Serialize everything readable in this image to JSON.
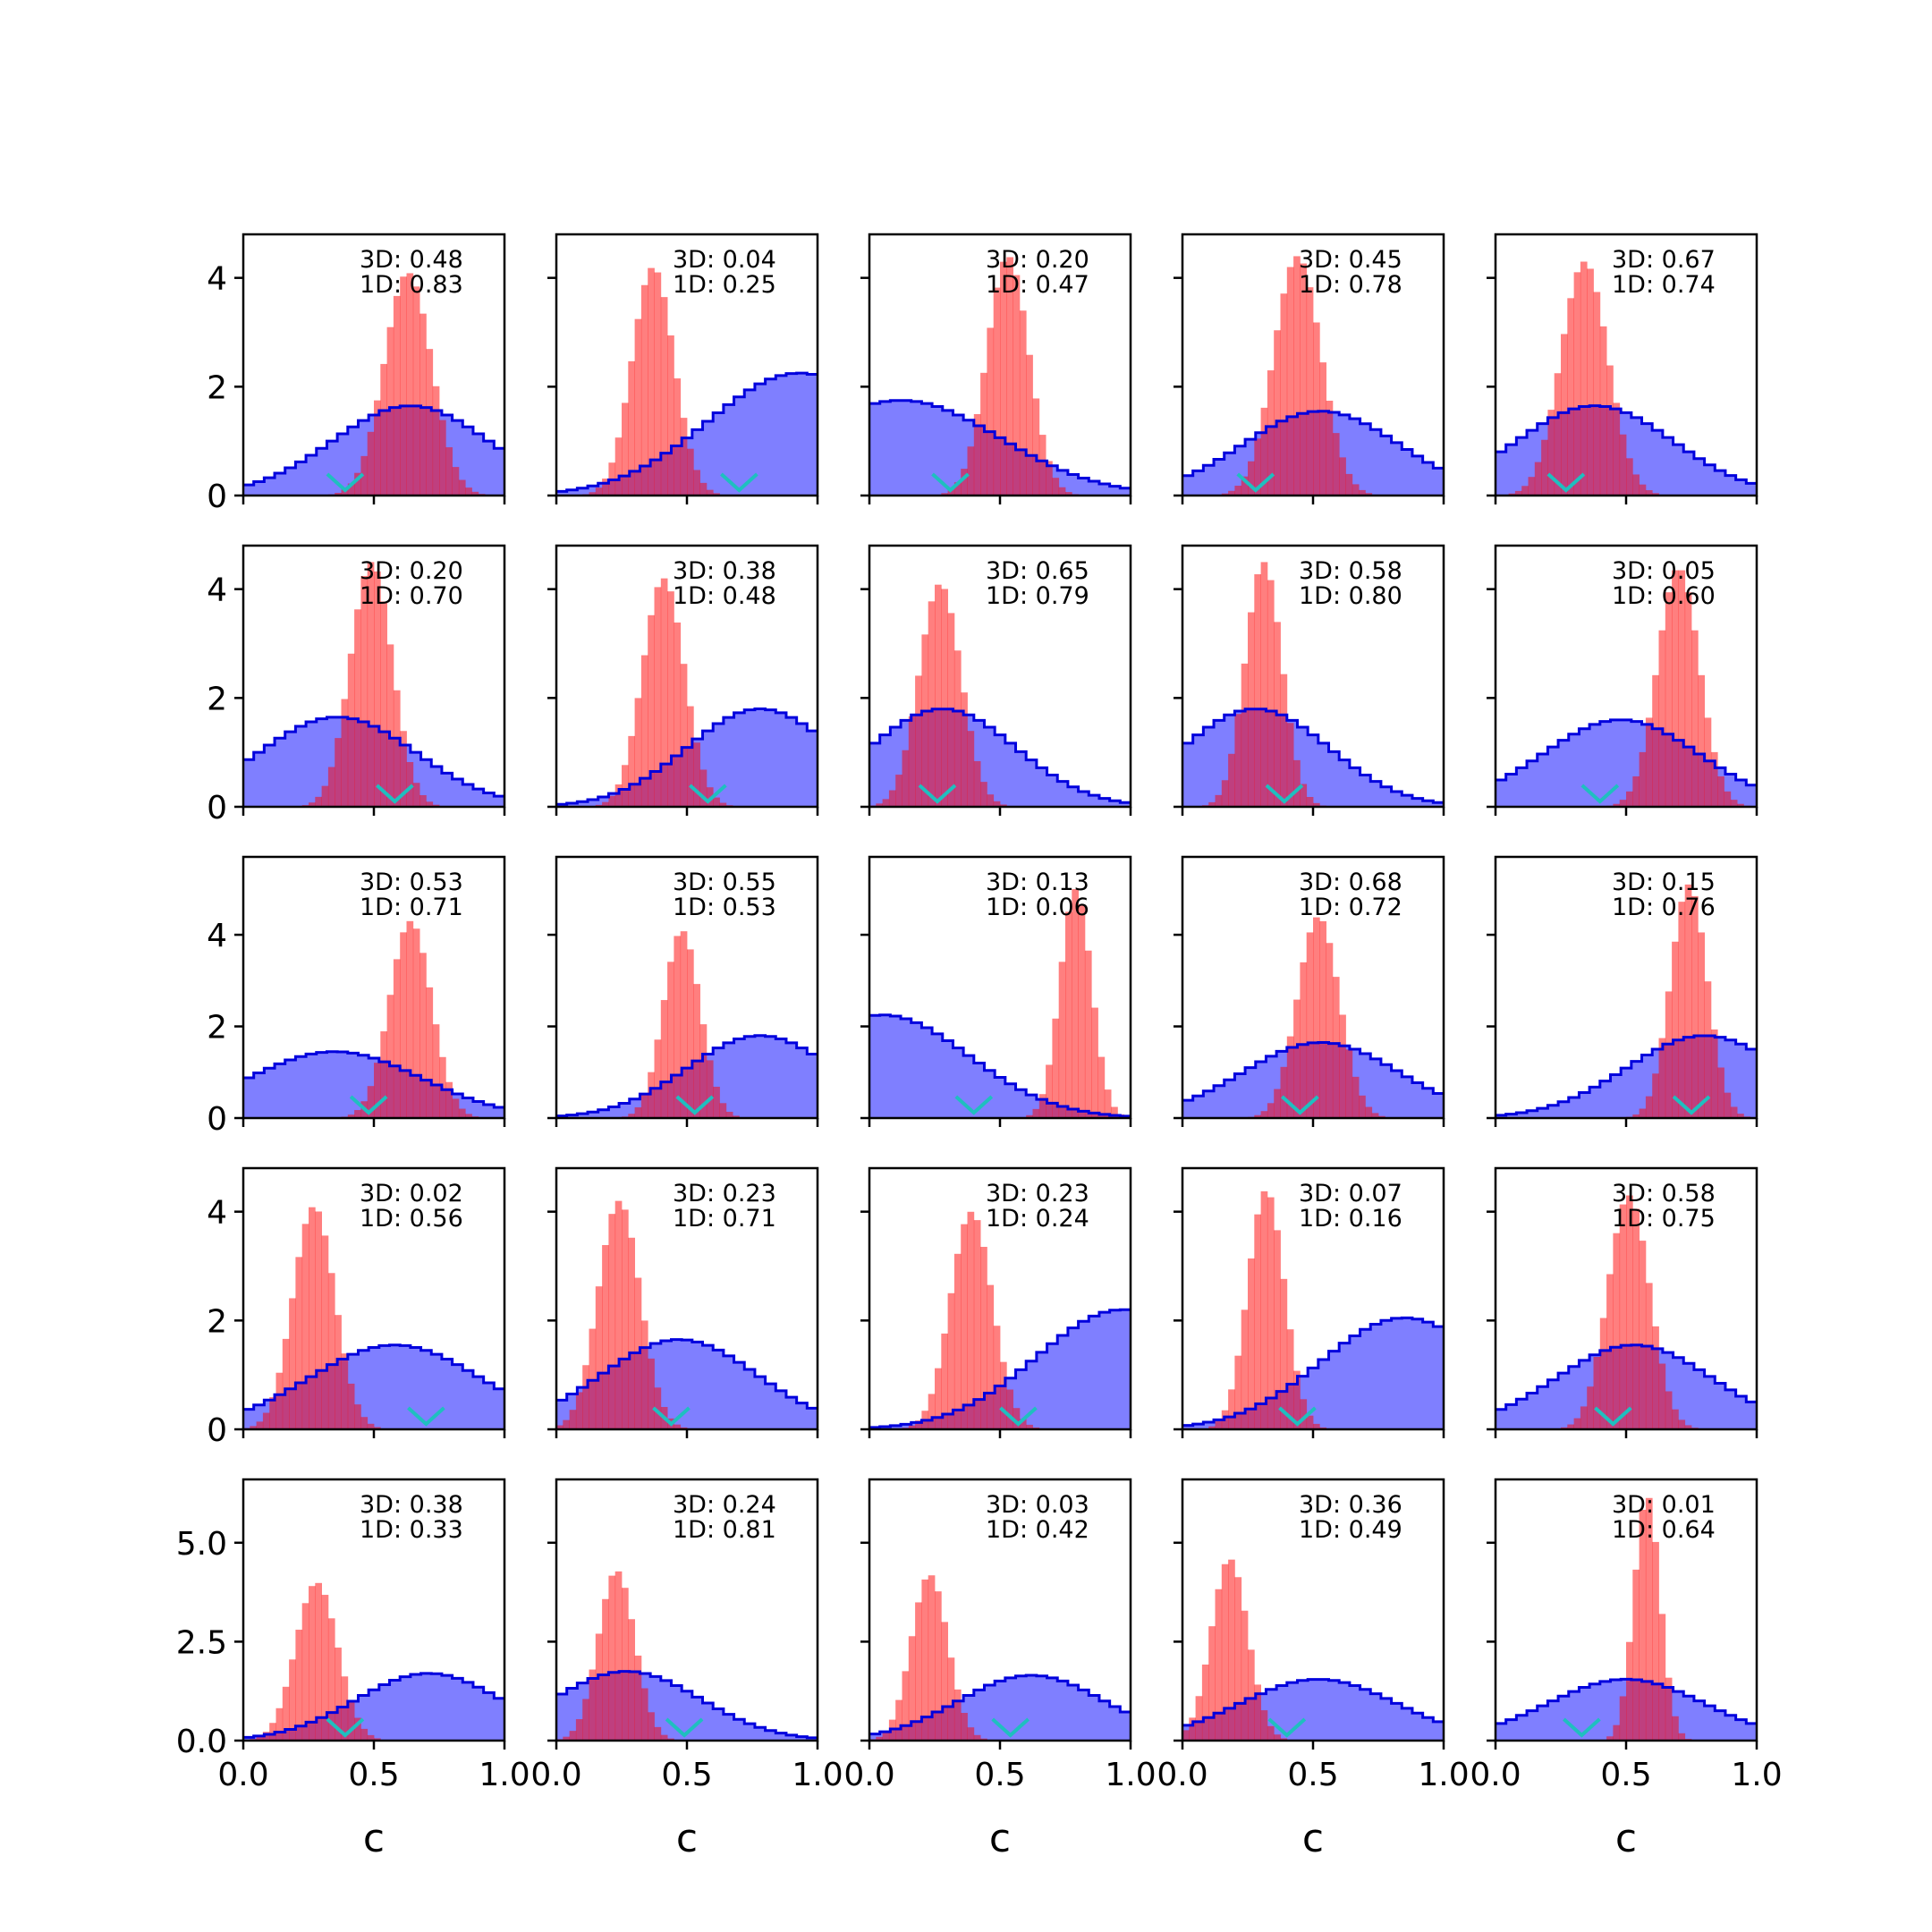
{
  "colors": {
    "broad_fill": "#0000ff",
    "broad_fill_opacity": 0.5,
    "broad_edge": "#0000dd",
    "narrow_fill": "#ff0000",
    "narrow_fill_opacity": 0.5,
    "marker": "#1fbfbf",
    "axes": "#000000"
  },
  "chart_data": {
    "type": "histogram-grid",
    "rows": 5,
    "cols": 5,
    "xlim": [
      0,
      1
    ],
    "xticks": [
      0.0,
      0.5,
      1.0
    ],
    "xtick_labels": [
      "0.0",
      "0.5",
      "1.0"
    ],
    "xlabel": "c",
    "shared_y_per_row": true,
    "row_axes": [
      {
        "ylim": [
          0,
          4.8
        ],
        "yticks": [
          0,
          2,
          4
        ],
        "ytick_labels": [
          "0",
          "2",
          "4"
        ]
      },
      {
        "ylim": [
          0,
          4.8
        ],
        "yticks": [
          0,
          2,
          4
        ],
        "ytick_labels": [
          "0",
          "2",
          "4"
        ]
      },
      {
        "ylim": [
          0,
          5.7
        ],
        "yticks": [
          0,
          2,
          4
        ],
        "ytick_labels": [
          "0",
          "2",
          "4"
        ]
      },
      {
        "ylim": [
          0,
          4.8
        ],
        "yticks": [
          0,
          2,
          4
        ],
        "ytick_labels": [
          "0",
          "2",
          "4"
        ]
      },
      {
        "ylim": [
          0,
          6.6
        ],
        "yticks": [
          0,
          2.5,
          5
        ],
        "ytick_labels": [
          "0.0",
          "2.5",
          "5.0"
        ]
      }
    ],
    "panels": [
      {
        "label_3d": "3D: 0.48",
        "label_1d": "1D: 0.83",
        "marker": 0.39,
        "broad": {
          "center": 0.64,
          "width": 0.3,
          "peak": 1.65,
          "skew": 0
        },
        "narrow": {
          "center": 0.63,
          "width": 0.09,
          "peak": 4.1,
          "skew": 0
        }
      },
      {
        "label_3d": "3D: 0.04",
        "label_1d": "1D: 0.25",
        "marker": 0.7,
        "broad": {
          "center": 0.93,
          "width": 0.35,
          "peak": 2.25,
          "skew": 0
        },
        "narrow": {
          "center": 0.37,
          "width": 0.08,
          "peak": 4.2,
          "skew": 0
        }
      },
      {
        "label_3d": "3D: 0.20",
        "label_1d": "1D: 0.47",
        "marker": 0.31,
        "broad": {
          "center": 0.12,
          "width": 0.38,
          "peak": 1.75,
          "skew": 0
        },
        "narrow": {
          "center": 0.53,
          "width": 0.08,
          "peak": 4.4,
          "skew": 0
        }
      },
      {
        "label_3d": "3D: 0.45",
        "label_1d": "1D: 0.78",
        "marker": 0.28,
        "broad": {
          "center": 0.53,
          "width": 0.3,
          "peak": 1.55,
          "skew": 0
        },
        "narrow": {
          "center": 0.44,
          "width": 0.09,
          "peak": 4.4,
          "skew": 0
        }
      },
      {
        "label_3d": "3D: 0.67",
        "label_1d": "1D: 0.74",
        "marker": 0.27,
        "broad": {
          "center": 0.38,
          "width": 0.3,
          "peak": 1.65,
          "skew": 0
        },
        "narrow": {
          "center": 0.34,
          "width": 0.09,
          "peak": 4.3,
          "skew": 0
        }
      },
      {
        "label_3d": "3D: 0.20",
        "label_1d": "1D: 0.70",
        "marker": 0.58,
        "broad": {
          "center": 0.36,
          "width": 0.3,
          "peak": 1.65,
          "skew": 0
        },
        "narrow": {
          "center": 0.49,
          "width": 0.08,
          "peak": 4.5,
          "skew": 0
        }
      },
      {
        "label_3d": "3D: 0.38",
        "label_1d": "1D: 0.48",
        "marker": 0.58,
        "broad": {
          "center": 0.78,
          "width": 0.28,
          "peak": 1.8,
          "skew": 0
        },
        "narrow": {
          "center": 0.41,
          "width": 0.08,
          "peak": 4.2,
          "skew": 0
        }
      },
      {
        "label_3d": "3D: 0.65",
        "label_1d": "1D: 0.79",
        "marker": 0.26,
        "broad": {
          "center": 0.28,
          "width": 0.28,
          "peak": 1.8,
          "skew": 0
        },
        "narrow": {
          "center": 0.27,
          "width": 0.08,
          "peak": 4.1,
          "skew": 0
        }
      },
      {
        "label_3d": "3D: 0.58",
        "label_1d": "1D: 0.80",
        "marker": 0.39,
        "broad": {
          "center": 0.28,
          "width": 0.28,
          "peak": 1.8,
          "skew": 0
        },
        "narrow": {
          "center": 0.31,
          "width": 0.07,
          "peak": 4.5,
          "skew": 0
        }
      },
      {
        "label_3d": "3D: 0.05",
        "label_1d": "1D: 0.60",
        "marker": 0.4,
        "broad": {
          "center": 0.48,
          "width": 0.3,
          "peak": 1.6,
          "skew": 0
        },
        "narrow": {
          "center": 0.7,
          "width": 0.08,
          "peak": 4.4,
          "skew": 0
        }
      },
      {
        "label_3d": "3D: 0.53",
        "label_1d": "1D: 0.71",
        "marker": 0.48,
        "broad": {
          "center": 0.35,
          "width": 0.33,
          "peak": 1.45,
          "skew": 0
        },
        "narrow": {
          "center": 0.64,
          "width": 0.08,
          "peak": 4.3,
          "skew": 0
        }
      },
      {
        "label_3d": "3D: 0.55",
        "label_1d": "1D: 0.53",
        "marker": 0.53,
        "broad": {
          "center": 0.78,
          "width": 0.28,
          "peak": 1.8,
          "skew": 0
        },
        "narrow": {
          "center": 0.48,
          "width": 0.07,
          "peak": 4.1,
          "skew": 0
        }
      },
      {
        "label_3d": "3D: 0.13",
        "label_1d": "1D: 0.06",
        "marker": 0.4,
        "broad": {
          "center": 0.05,
          "width": 0.33,
          "peak": 2.25,
          "skew": 0
        },
        "narrow": {
          "center": 0.79,
          "width": 0.06,
          "peak": 5.0,
          "skew": 0
        }
      },
      {
        "label_3d": "3D: 0.68",
        "label_1d": "1D: 0.72",
        "marker": 0.45,
        "broad": {
          "center": 0.53,
          "width": 0.3,
          "peak": 1.65,
          "skew": 0
        },
        "narrow": {
          "center": 0.52,
          "width": 0.08,
          "peak": 4.4,
          "skew": 0
        }
      },
      {
        "label_3d": "3D: 0.15",
        "label_1d": "1D: 0.76",
        "marker": 0.75,
        "broad": {
          "center": 0.8,
          "width": 0.3,
          "peak": 1.8,
          "skew": 0
        },
        "narrow": {
          "center": 0.74,
          "width": 0.07,
          "peak": 5.1,
          "skew": 0
        }
      },
      {
        "label_3d": "3D: 0.02",
        "label_1d": "1D: 0.56",
        "marker": 0.7,
        "broad": {
          "center": 0.58,
          "width": 0.33,
          "peak": 1.55,
          "skew": 0
        },
        "narrow": {
          "center": 0.27,
          "width": 0.08,
          "peak": 4.1,
          "skew": 0
        }
      },
      {
        "label_3d": "3D: 0.23",
        "label_1d": "1D: 0.71",
        "marker": 0.44,
        "broad": {
          "center": 0.47,
          "width": 0.3,
          "peak": 1.65,
          "skew": 0
        },
        "narrow": {
          "center": 0.24,
          "width": 0.08,
          "peak": 4.2,
          "skew": 0
        }
      },
      {
        "label_3d": "3D: 0.23",
        "label_1d": "1D: 0.24",
        "marker": 0.57,
        "broad": {
          "center": 0.97,
          "width": 0.33,
          "peak": 2.2,
          "skew": 0
        },
        "narrow": {
          "center": 0.39,
          "width": 0.08,
          "peak": 4.0,
          "skew": 0
        }
      },
      {
        "label_3d": "3D: 0.07",
        "label_1d": "1D: 0.16",
        "marker": 0.44,
        "broad": {
          "center": 0.85,
          "width": 0.32,
          "peak": 2.05,
          "skew": 0
        },
        "narrow": {
          "center": 0.32,
          "width": 0.07,
          "peak": 4.4,
          "skew": 0
        }
      },
      {
        "label_3d": "3D: 0.58",
        "label_1d": "1D: 0.75",
        "marker": 0.45,
        "broad": {
          "center": 0.53,
          "width": 0.3,
          "peak": 1.55,
          "skew": 0
        },
        "narrow": {
          "center": 0.51,
          "width": 0.08,
          "peak": 4.3,
          "skew": 0
        }
      },
      {
        "label_3d": "3D: 0.38",
        "label_1d": "1D: 0.33",
        "marker": 0.39,
        "broad": {
          "center": 0.71,
          "width": 0.28,
          "peak": 1.7,
          "skew": 0
        },
        "narrow": {
          "center": 0.28,
          "width": 0.08,
          "peak": 4.0,
          "skew": 0
        }
      },
      {
        "label_3d": "3D: 0.24",
        "label_1d": "1D: 0.81",
        "marker": 0.49,
        "broad": {
          "center": 0.27,
          "width": 0.28,
          "peak": 1.75,
          "skew": 0
        },
        "narrow": {
          "center": 0.23,
          "width": 0.07,
          "peak": 4.3,
          "skew": 0
        }
      },
      {
        "label_3d": "3D: 0.03",
        "label_1d": "1D: 0.42",
        "marker": 0.54,
        "broad": {
          "center": 0.62,
          "width": 0.28,
          "peak": 1.65,
          "skew": 0
        },
        "narrow": {
          "center": 0.23,
          "width": 0.07,
          "peak": 4.2,
          "skew": 0
        }
      },
      {
        "label_3d": "3D: 0.36",
        "label_1d": "1D: 0.49",
        "marker": 0.4,
        "broad": {
          "center": 0.52,
          "width": 0.3,
          "peak": 1.55,
          "skew": 0
        },
        "narrow": {
          "center": 0.18,
          "width": 0.07,
          "peak": 4.6,
          "skew": 0
        }
      },
      {
        "label_3d": "3D: 0.01",
        "label_1d": "1D: 0.64",
        "marker": 0.33,
        "broad": {
          "center": 0.5,
          "width": 0.3,
          "peak": 1.55,
          "skew": 0
        },
        "narrow": {
          "center": 0.58,
          "width": 0.05,
          "peak": 6.2,
          "skew": 0
        }
      }
    ]
  }
}
